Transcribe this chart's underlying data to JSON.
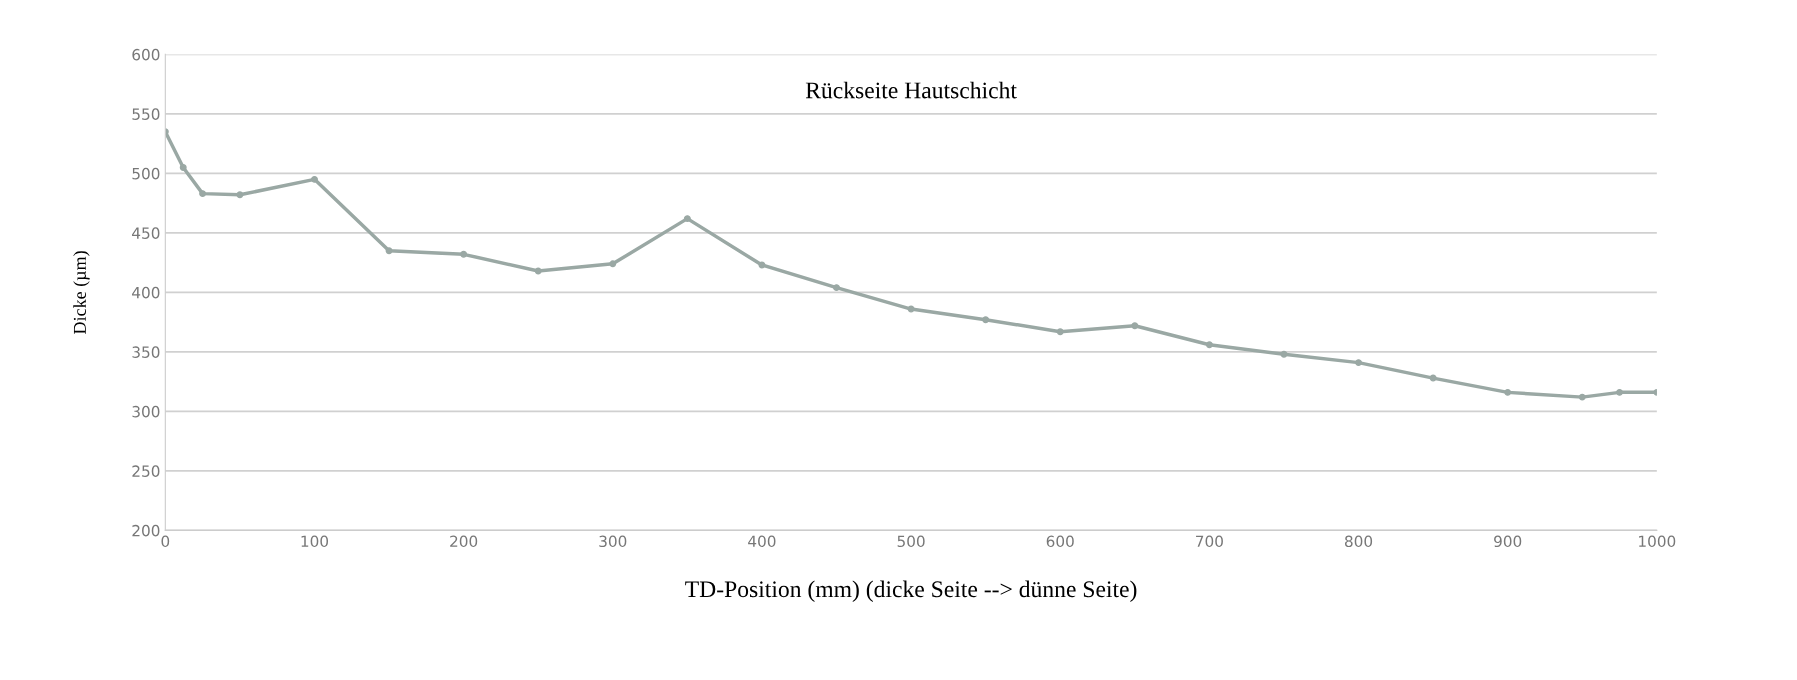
{
  "chart_data": {
    "type": "line",
    "title": "Rückseite Hautschicht",
    "xlabel": "TD-Position (mm) (dicke Seite --> dünne Seite)",
    "ylabel": "Dicke (µm)",
    "x": [
      0,
      12,
      25,
      50,
      100,
      150,
      200,
      250,
      300,
      350,
      400,
      450,
      500,
      550,
      600,
      650,
      700,
      750,
      800,
      850,
      900,
      950,
      975,
      1000
    ],
    "series": [
      {
        "color": "#9aa8a4",
        "values": [
          535,
          505,
          483,
          482,
          495,
          435,
          432,
          418,
          424,
          462,
          423,
          404,
          386,
          377,
          367,
          372,
          356,
          348,
          341,
          328,
          316,
          312,
          316,
          316
        ]
      }
    ],
    "xlim": [
      0,
      1000
    ],
    "xticks": [
      0,
      100,
      200,
      300,
      400,
      500,
      600,
      700,
      800,
      900,
      1000
    ],
    "ylim": [
      200,
      600
    ],
    "yticks": [
      200,
      250,
      300,
      350,
      400,
      450,
      500,
      550,
      600
    ],
    "grid": "y",
    "marker": "circle",
    "line_style": "solid",
    "legend": false
  }
}
